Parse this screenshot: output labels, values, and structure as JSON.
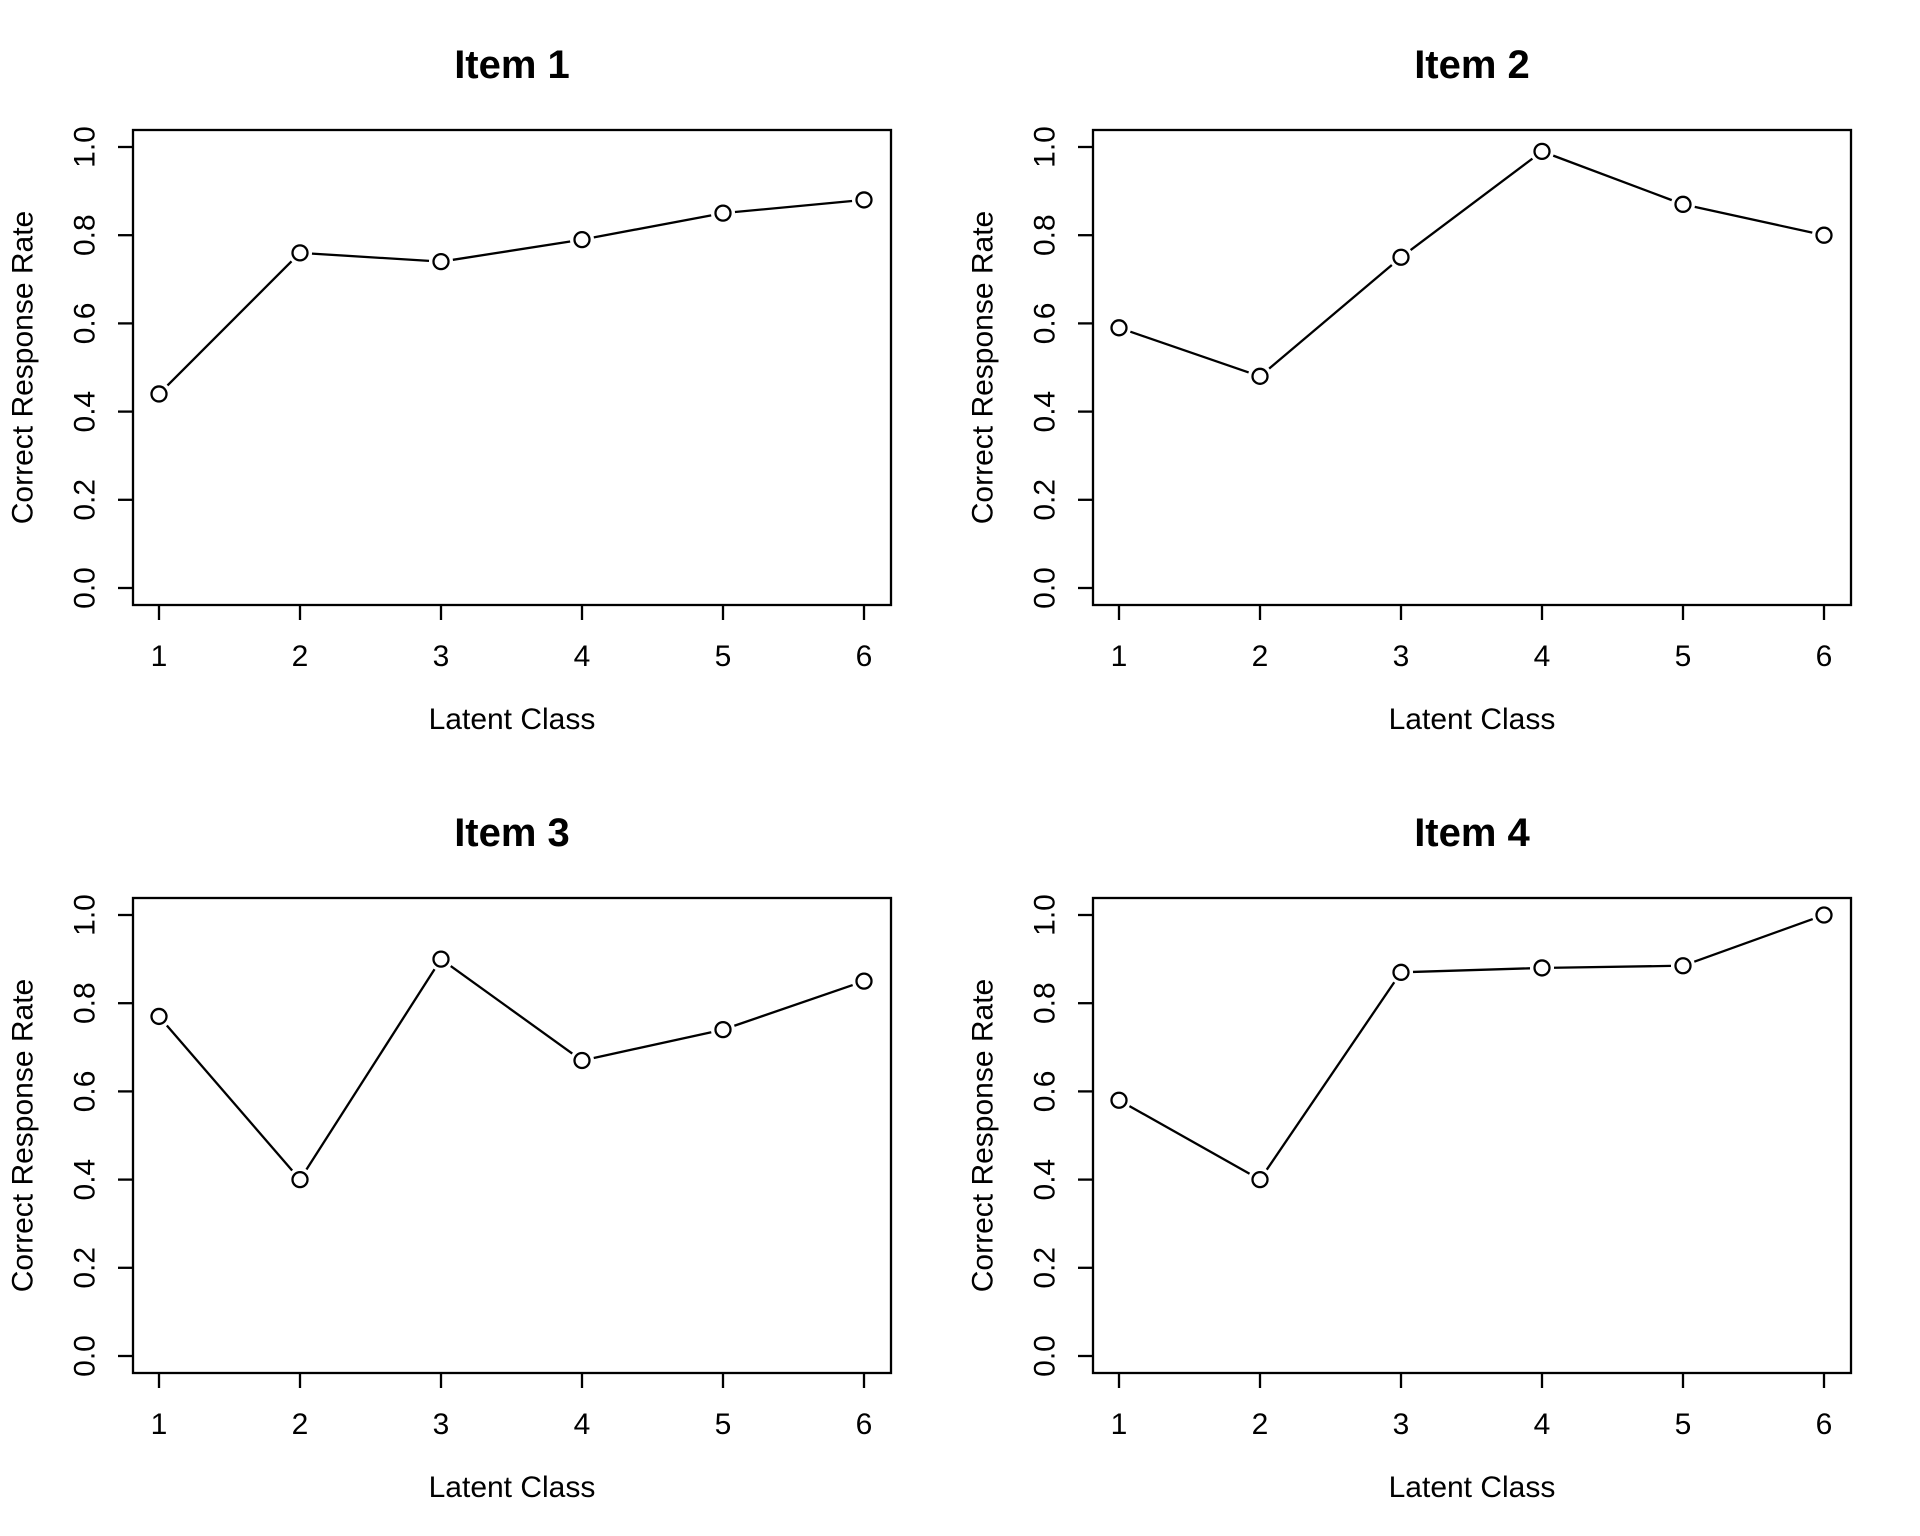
{
  "page": {
    "background": "#ffffff",
    "foreground": "#000000"
  },
  "chart_data": [
    {
      "type": "line",
      "title": "Item 1",
      "xlabel": "Latent Class",
      "ylabel": "Correct Response Rate",
      "x": [
        1,
        2,
        3,
        4,
        5,
        6
      ],
      "values": [
        0.44,
        0.76,
        0.74,
        0.79,
        0.85,
        0.88
      ],
      "xticks": [
        "1",
        "2",
        "3",
        "4",
        "5",
        "6"
      ],
      "yticks": [
        "0.0",
        "0.2",
        "0.4",
        "0.6",
        "0.8",
        "1.0"
      ],
      "ytick_values": [
        0.0,
        0.2,
        0.4,
        0.6,
        0.8,
        1.0
      ],
      "xlim": [
        1,
        6
      ],
      "ylim": [
        0.0,
        1.0
      ],
      "grid": false,
      "marker": "open-circle",
      "line_color": "#000000",
      "marker_fill": "#ffffff"
    },
    {
      "type": "line",
      "title": "Item 2",
      "xlabel": "Latent Class",
      "ylabel": "Correct Response Rate",
      "x": [
        1,
        2,
        3,
        4,
        5,
        6
      ],
      "values": [
        0.59,
        0.48,
        0.75,
        0.99,
        0.87,
        0.8
      ],
      "xticks": [
        "1",
        "2",
        "3",
        "4",
        "5",
        "6"
      ],
      "yticks": [
        "0.0",
        "0.2",
        "0.4",
        "0.6",
        "0.8",
        "1.0"
      ],
      "ytick_values": [
        0.0,
        0.2,
        0.4,
        0.6,
        0.8,
        1.0
      ],
      "xlim": [
        1,
        6
      ],
      "ylim": [
        0.0,
        1.0
      ],
      "grid": false,
      "marker": "open-circle",
      "line_color": "#000000",
      "marker_fill": "#ffffff"
    },
    {
      "type": "line",
      "title": "Item 3",
      "xlabel": "Latent Class",
      "ylabel": "Correct Response Rate",
      "x": [
        1,
        2,
        3,
        4,
        5,
        6
      ],
      "values": [
        0.77,
        0.4,
        0.9,
        0.67,
        0.74,
        0.85
      ],
      "xticks": [
        "1",
        "2",
        "3",
        "4",
        "5",
        "6"
      ],
      "yticks": [
        "0.0",
        "0.2",
        "0.4",
        "0.6",
        "0.8",
        "1.0"
      ],
      "ytick_values": [
        0.0,
        0.2,
        0.4,
        0.6,
        0.8,
        1.0
      ],
      "xlim": [
        1,
        6
      ],
      "ylim": [
        0.0,
        1.0
      ],
      "grid": false,
      "marker": "open-circle",
      "line_color": "#000000",
      "marker_fill": "#ffffff"
    },
    {
      "type": "line",
      "title": "Item 4",
      "xlabel": "Latent Class",
      "ylabel": "Correct Response Rate",
      "x": [
        1,
        2,
        3,
        4,
        5,
        6
      ],
      "values": [
        0.58,
        0.4,
        0.87,
        0.88,
        0.885,
        1.0
      ],
      "xticks": [
        "1",
        "2",
        "3",
        "4",
        "5",
        "6"
      ],
      "yticks": [
        "0.0",
        "0.2",
        "0.4",
        "0.6",
        "0.8",
        "1.0"
      ],
      "ytick_values": [
        0.0,
        0.2,
        0.4,
        0.6,
        0.8,
        1.0
      ],
      "xlim": [
        1,
        6
      ],
      "ylim": [
        0.0,
        1.0
      ],
      "grid": false,
      "marker": "open-circle",
      "line_color": "#000000",
      "marker_fill": "#ffffff"
    }
  ]
}
